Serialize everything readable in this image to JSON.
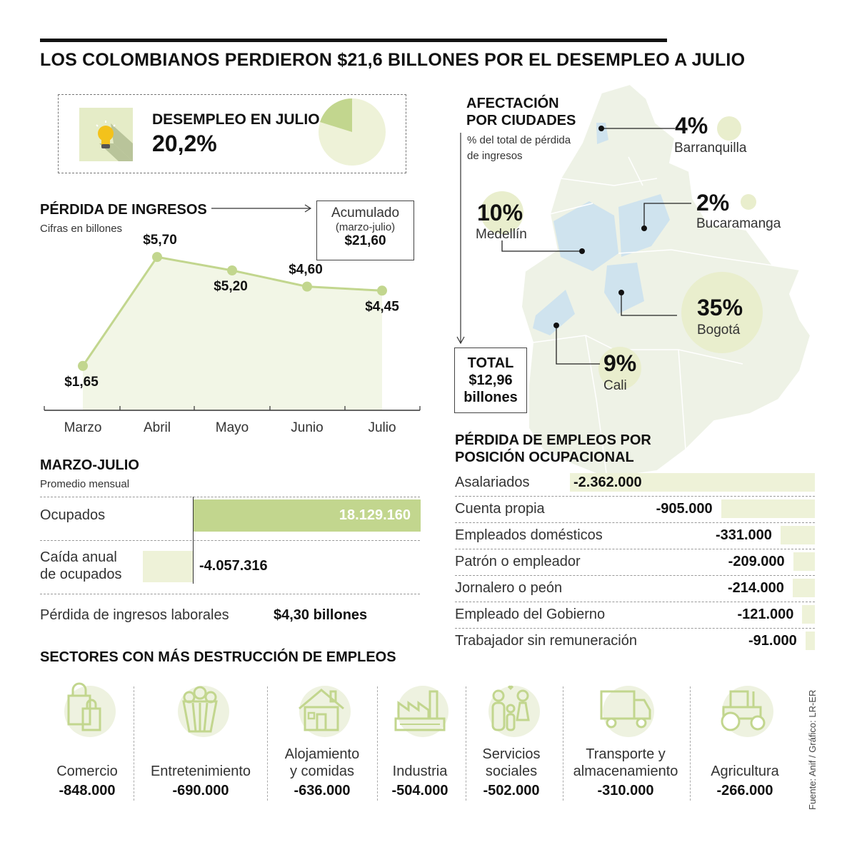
{
  "title": "LOS COLOMBIANOS PERDIERON $21,6 BILLONES POR EL DESEMPLEO A JULIO",
  "unemployment": {
    "label": "DESEMPLEO EN JULIO",
    "value": "20,2%",
    "rate": 0.202
  },
  "income_loss": {
    "heading": "PÉRDIDA DE INGRESOS",
    "subheading": "Cifras en billones",
    "accum_label": "Acumulado",
    "accum_period": "(marzo-julio)",
    "accum_value": "$21,60"
  },
  "chart_data": {
    "type": "area",
    "categories": [
      "Marzo",
      "Abril",
      "Mayo",
      "Junio",
      "Julio"
    ],
    "values": [
      1.65,
      5.7,
      5.2,
      4.6,
      4.45
    ],
    "value_labels": [
      "$1,65",
      "$5,70",
      "$5,20",
      "$4,60",
      "$4,45"
    ],
    "title": "PÉRDIDA DE INGRESOS",
    "subtitle": "Cifras en billones",
    "ylim": [
      0,
      6.5
    ],
    "colors": {
      "line": "#c2d68e",
      "fill": "#f2f6e6",
      "point": "#c2d68e"
    }
  },
  "marzo_julio": {
    "heading": "MARZO-JULIO",
    "subheading": "Promedio mensual",
    "ocupados_label": "Ocupados",
    "ocupados_value": "18.129.160",
    "caida_label_1": "Caída anual",
    "caida_label_2": "de ocupados",
    "caida_value": "-4.057.316",
    "perdida_label": "Pérdida de ingresos laborales",
    "perdida_value": "$4,30 billones"
  },
  "map": {
    "heading_1": "AFECTACIÓN",
    "heading_2": "POR CIUDADES",
    "sub_1": "% del total de pérdida",
    "sub_2": "de ingresos",
    "total_1": "TOTAL",
    "total_2": "$12,96",
    "total_3": "billones",
    "cities": [
      {
        "name": "Barranquilla",
        "pct": "4%"
      },
      {
        "name": "Bucaramanga",
        "pct": "2%"
      },
      {
        "name": "Medellín",
        "pct": "10%"
      },
      {
        "name": "Bogotá",
        "pct": "35%"
      },
      {
        "name": "Cali",
        "pct": "9%"
      }
    ]
  },
  "positions": {
    "heading_1": "PÉRDIDA DE EMPLEOS POR",
    "heading_2": "POSICIÓN OCUPACIONAL",
    "rows": [
      {
        "label": "Asalariados",
        "value": "-2.362.000",
        "n": 2362000
      },
      {
        "label": "Cuenta propia",
        "value": "-905.000",
        "n": 905000
      },
      {
        "label": "Empleados domésticos",
        "value": "-331.000",
        "n": 331000
      },
      {
        "label": "Patrón o empleador",
        "value": "-209.000",
        "n": 209000
      },
      {
        "label": "Jornalero o peón",
        "value": "-214.000",
        "n": 214000
      },
      {
        "label": "Empleado del Gobierno",
        "value": "-121.000",
        "n": 121000
      },
      {
        "label": "Trabajador sin remuneración",
        "value": "-91.000",
        "n": 91000
      }
    ]
  },
  "sectors": {
    "heading": "SECTORES CON MÁS DESTRUCCIÓN DE EMPLEOS",
    "items": [
      {
        "line1": "",
        "line2": "Comercio",
        "value": "-848.000",
        "icon": "shopping-bags-icon"
      },
      {
        "line1": "",
        "line2": "Entretenimiento",
        "value": "-690.000",
        "icon": "popcorn-icon"
      },
      {
        "line1": "Alojamiento",
        "line2": "y comidas",
        "value": "-636.000",
        "icon": "house-icon"
      },
      {
        "line1": "",
        "line2": "Industria",
        "value": "-504.000",
        "icon": "factory-icon"
      },
      {
        "line1": "Servicios",
        "line2": "sociales",
        "value": "-502.000",
        "icon": "family-icon"
      },
      {
        "line1": "Transporte y",
        "line2": "almacenamiento",
        "value": "-310.000",
        "icon": "truck-icon"
      },
      {
        "line1": "",
        "line2": "Agricultura",
        "value": "-266.000",
        "icon": "tractor-icon"
      }
    ]
  },
  "source": "Fuente: Anif / Gráfico: LR-ER"
}
